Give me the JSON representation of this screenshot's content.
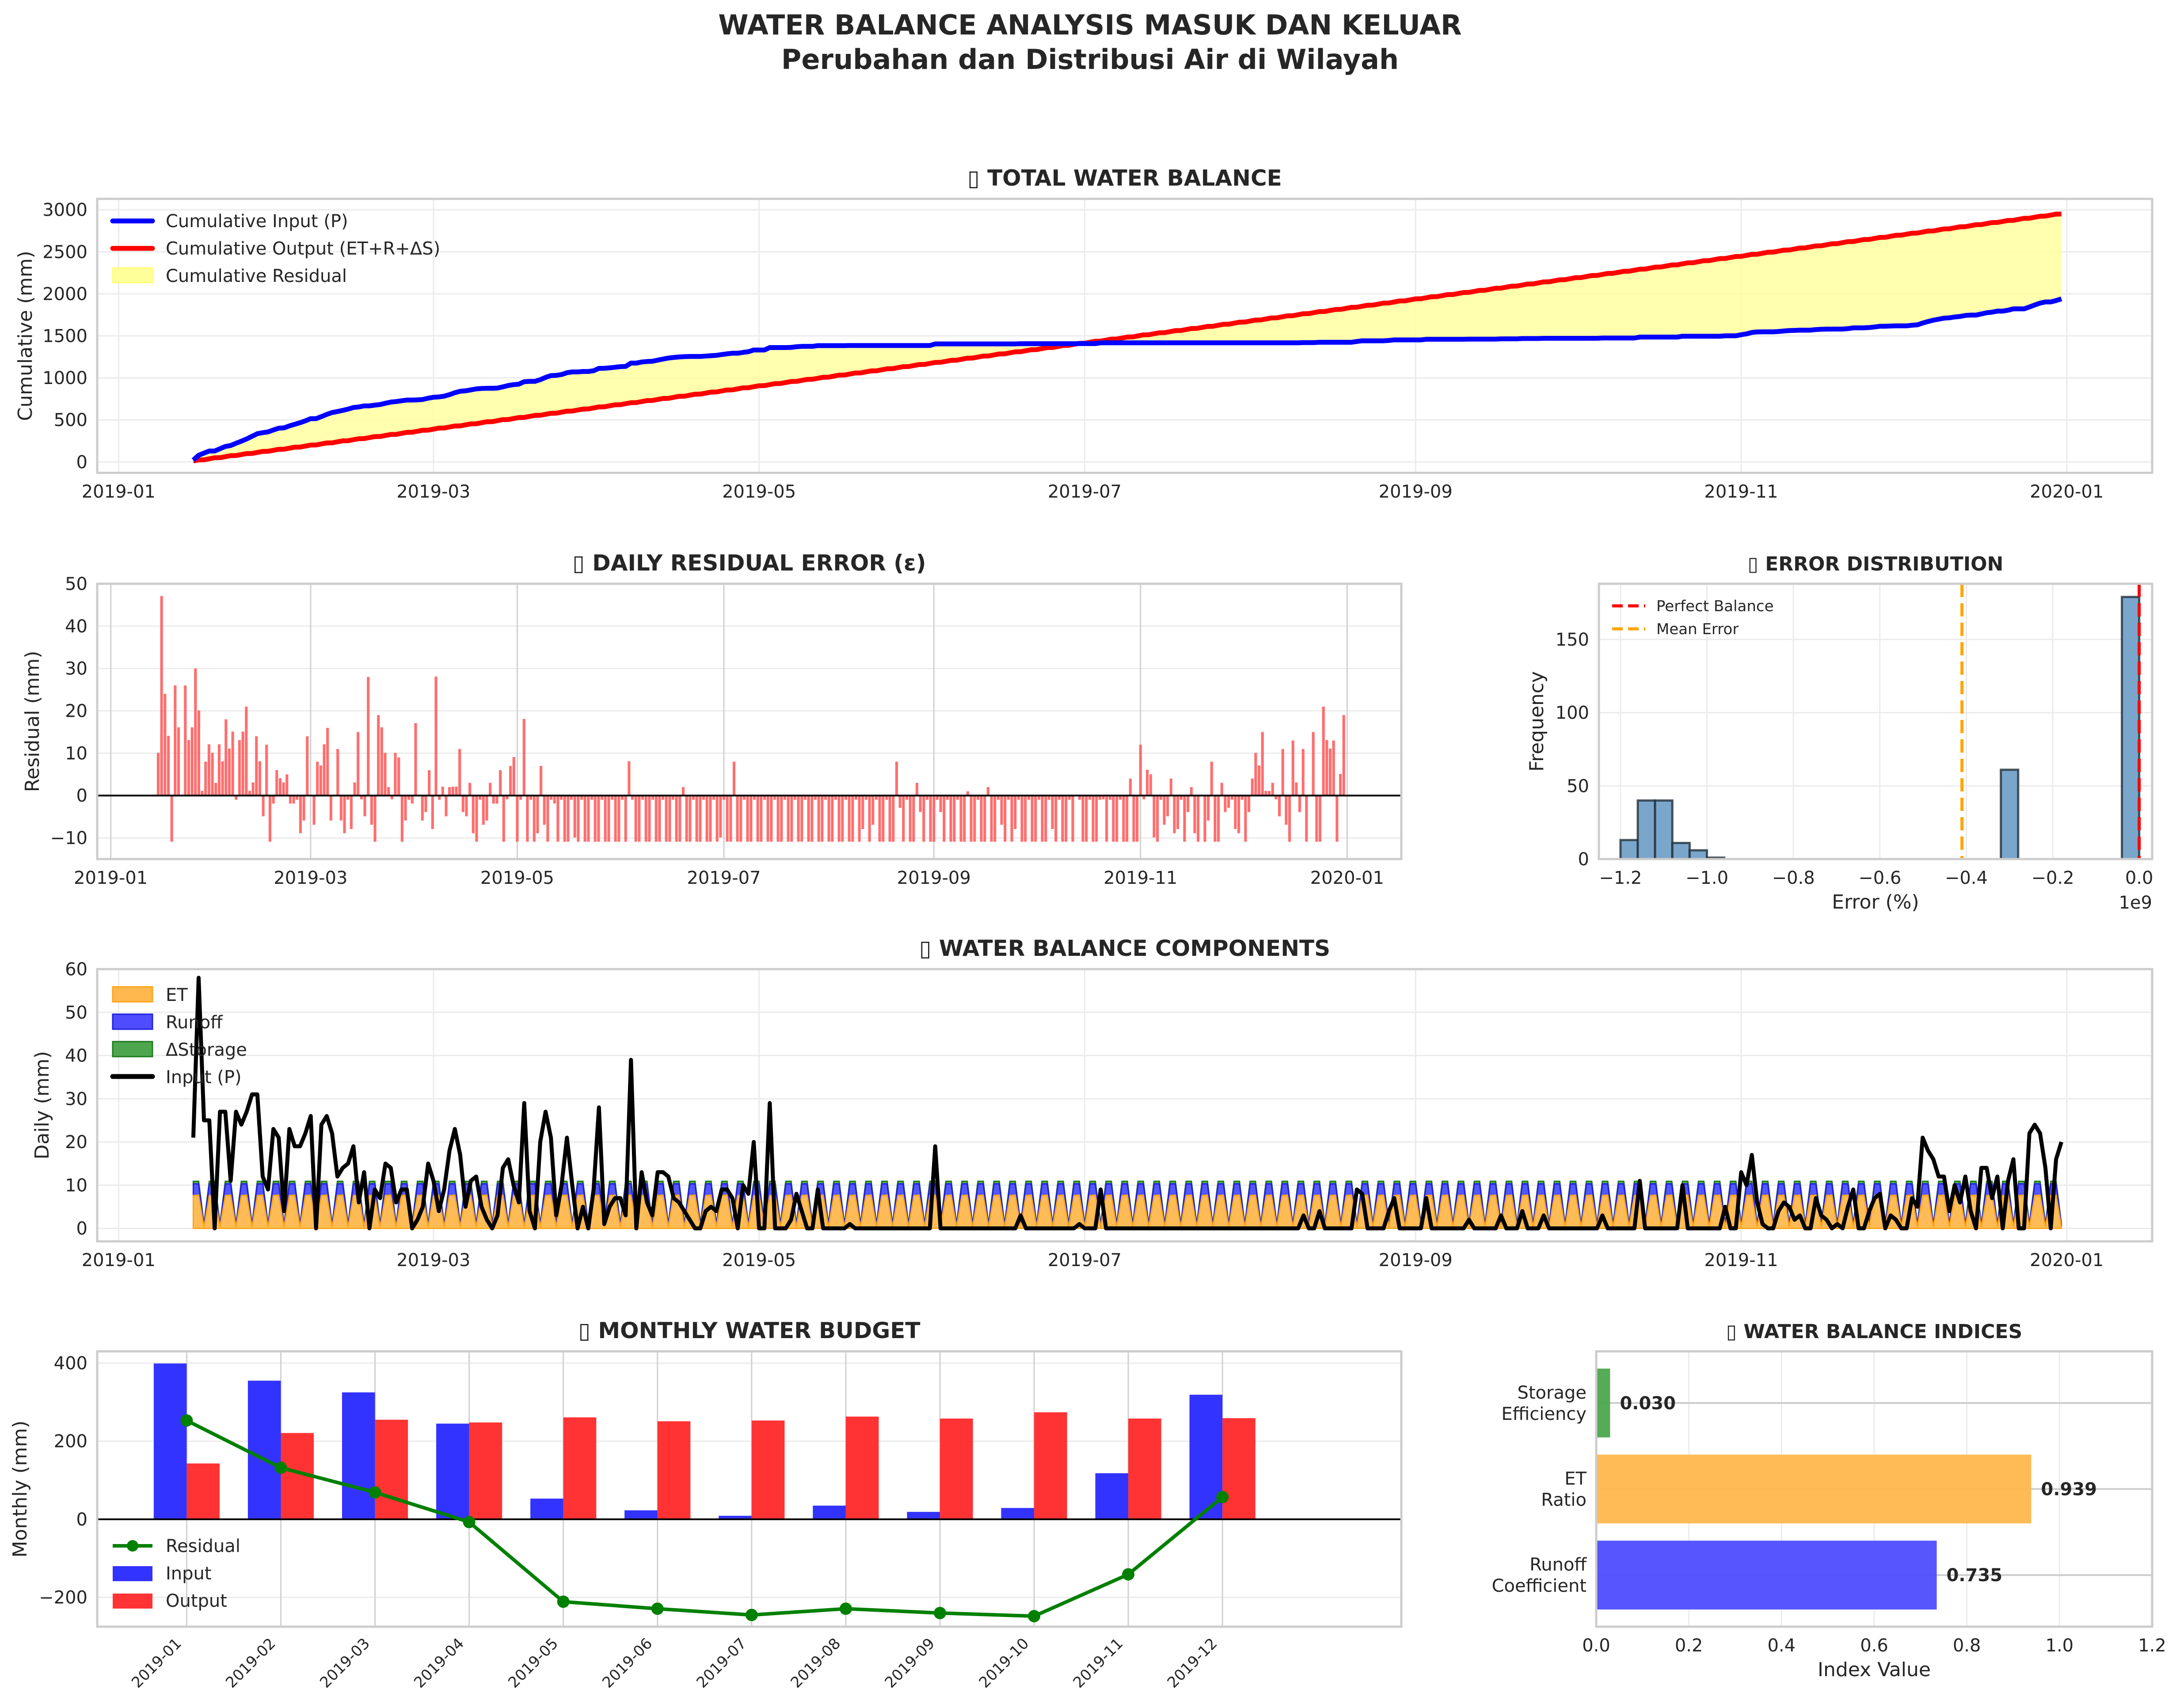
{
  "figure": {
    "title_line1": "WATER BALANCE ANALYSIS MASUK DAN KELUAR",
    "title_line2": "Perubahan dan Distribusi Air di Wilayah",
    "missing_glyph": "▯"
  },
  "colors": {
    "input": "#0000ff",
    "output": "#ff0000",
    "residual_fill": "#ffff99",
    "residual_bar": "#ff6666",
    "et": "#ffb84d",
    "runoff": "#4d4dff",
    "storage": "#4da64d",
    "hist": "#7aa6cc",
    "mean": "#ffa500",
    "monthly_residual": "#008000",
    "monthly_input": "#3333ff",
    "monthly_output": "#ff3333"
  },
  "chart_data": [
    {
      "id": "total",
      "type": "line",
      "title": "TOTAL WATER BALANCE",
      "ylabel": "Cumulative (mm)",
      "xlabel": "",
      "ylim": [
        -130,
        3130
      ],
      "yticks": [
        0,
        500,
        1000,
        1500,
        2000,
        2500,
        3000
      ],
      "xticks": [
        "2019-01",
        "2019-03",
        "2019-05",
        "2019-07",
        "2019-09",
        "2019-11",
        "2020-01"
      ],
      "grid": true,
      "legend_position": "top-left",
      "legend": [
        "Cumulative Input (P)",
        "Cumulative Output (ET+R+ΔS)",
        "Cumulative Residual"
      ],
      "final_values": {
        "cumulative_input": 1940,
        "cumulative_output": 2950
      },
      "series_note": "cumulative sums of daily.P and daily output"
    },
    {
      "id": "residual",
      "type": "bar",
      "title": "DAILY RESIDUAL ERROR (ε)",
      "ylabel": "Residual (mm)",
      "ylim": [
        -15,
        50
      ],
      "yticks": [
        -10,
        0,
        10,
        20,
        30,
        40,
        50
      ],
      "xticks": [
        "2019-01",
        "2019-03",
        "2019-05",
        "2019-07",
        "2019-09",
        "2019-11",
        "2020-01"
      ],
      "grid": true,
      "series_note": "daily.P minus daily output"
    },
    {
      "id": "hist",
      "type": "bar",
      "title": "ERROR DISTRIBUTION",
      "xlabel": "Error (%)",
      "ylabel": "Frequency",
      "x_scale_label": "1e9",
      "xlim": [
        -1.25,
        0.03
      ],
      "ylim": [
        0,
        188
      ],
      "xticks": [
        -1.2,
        -1.0,
        -0.8,
        -0.6,
        -0.4,
        -0.2,
        0.0
      ],
      "xtick_labels": [
        "−1.2",
        "−1.0",
        "−0.8",
        "−0.6",
        "−0.4",
        "−0.2",
        "0.0"
      ],
      "yticks": [
        0,
        50,
        100,
        150
      ],
      "bins": [
        {
          "from": -1.2,
          "to": -1.16,
          "count": 13
        },
        {
          "from": -1.16,
          "to": -1.12,
          "count": 40
        },
        {
          "from": -1.12,
          "to": -1.08,
          "count": 40
        },
        {
          "from": -1.08,
          "to": -1.04,
          "count": 11
        },
        {
          "from": -1.04,
          "to": -1.0,
          "count": 6
        },
        {
          "from": -1.0,
          "to": -0.96,
          "count": 1
        },
        {
          "from": -0.32,
          "to": -0.28,
          "count": 61
        },
        {
          "from": -0.04,
          "to": 0.0,
          "count": 179
        }
      ],
      "perfect_balance": 0.0,
      "mean_error": -0.41,
      "legend_position": "top-left",
      "legend": [
        "Perfect Balance",
        "Mean Error"
      ]
    },
    {
      "id": "components",
      "type": "area",
      "title": "WATER BALANCE COMPONENTS",
      "ylabel": "Daily (mm)",
      "ylim": [
        -3,
        60
      ],
      "yticks": [
        0,
        10,
        20,
        30,
        40,
        50,
        60
      ],
      "xticks": [
        "2019-01",
        "2019-03",
        "2019-05",
        "2019-07",
        "2019-09",
        "2019-11",
        "2020-01"
      ],
      "grid": true,
      "legend_position": "top-left",
      "legend": [
        "ET",
        "Runoff",
        "ΔStorage",
        "Input (P)"
      ],
      "component_cycle": {
        "et": [
          7.6,
          7.7,
          0.3
        ],
        "runoff": [
          2.7,
          2.6,
          0.4
        ],
        "storage": [
          0.6,
          0.6,
          0.3
        ]
      }
    },
    {
      "id": "monthly",
      "type": "bar",
      "title": "MONTHLY WATER BUDGET",
      "ylabel": "Monthly (mm)",
      "ylim": [
        -275,
        430
      ],
      "yticks": [
        -200,
        0,
        200,
        400
      ],
      "categories": [
        "2019-01",
        "2019-02",
        "2019-03",
        "2019-04",
        "2019-05",
        "2019-06",
        "2019-07",
        "2019-08",
        "2019-09",
        "2019-10",
        "2019-11",
        "2019-12"
      ],
      "series": [
        {
          "name": "Input",
          "values": [
            399,
            355,
            325,
            245,
            53,
            23,
            9,
            35,
            19,
            29,
            118,
            319
          ]
        },
        {
          "name": "Output",
          "values": [
            143,
            221,
            255,
            248,
            261,
            251,
            253,
            263,
            258,
            274,
            258,
            259
          ]
        },
        {
          "name": "Residual",
          "values": [
            253,
            132,
            69,
            -7,
            -211,
            -229,
            -245,
            -229,
            -240,
            -248,
            -141,
            57
          ]
        }
      ],
      "legend_position": "lower-left",
      "legend": [
        "Residual",
        "Input",
        "Output"
      ]
    },
    {
      "id": "indices",
      "type": "bar",
      "orientation": "horizontal",
      "title": "WATER BALANCE INDICES",
      "xlabel": "Index Value",
      "xlim": [
        0,
        1.2
      ],
      "xticks": [
        0.0,
        0.2,
        0.4,
        0.6,
        0.8,
        1.0,
        1.2
      ],
      "categories": [
        "Runoff\nCoefficient",
        "ET\nRatio",
        "Storage\nEfficiency"
      ],
      "values": [
        0.735,
        0.939,
        0.03
      ],
      "value_labels": [
        "0.735",
        "0.939",
        "0.030"
      ]
    }
  ],
  "daily": {
    "start": "2019-01-15",
    "P": [
      21,
      58,
      25,
      25,
      0,
      27,
      27,
      11,
      27,
      24,
      27,
      31,
      31,
      12,
      9,
      23,
      21,
      4,
      23,
      19,
      19,
      22,
      26,
      0,
      24,
      26,
      22,
      12,
      14,
      15,
      19,
      6,
      13,
      0,
      9,
      7,
      15,
      14,
      6,
      9,
      9,
      0,
      2,
      5,
      15,
      11,
      4,
      9,
      18,
      23,
      17,
      5,
      11,
      12,
      5,
      2,
      0,
      3,
      14,
      16,
      10,
      6,
      29,
      4,
      0,
      20,
      27,
      21,
      3,
      10,
      21,
      10,
      0,
      5,
      0,
      9,
      28,
      1,
      5,
      7,
      7,
      3,
      39,
      0,
      13,
      6,
      3,
      13,
      13,
      12,
      7,
      6,
      4,
      2,
      0,
      0,
      4,
      5,
      4,
      9,
      9,
      7,
      0,
      10,
      8,
      20,
      0,
      0,
      29,
      0,
      0,
      0,
      2,
      8,
      4,
      0,
      0,
      9,
      0,
      0,
      0,
      0,
      0,
      1,
      0,
      0,
      0,
      0,
      0,
      0,
      0,
      0,
      0,
      0,
      0,
      0,
      0,
      0,
      0,
      19,
      0,
      0,
      0,
      0,
      0,
      0,
      0,
      0,
      0,
      0,
      0,
      0,
      0,
      0,
      0,
      3,
      0,
      0,
      0,
      0,
      0,
      0,
      0,
      0,
      0,
      0,
      1,
      0,
      0,
      0,
      9,
      0,
      0,
      0,
      0,
      0,
      0,
      0,
      0,
      0,
      0,
      0,
      0,
      0,
      0,
      0,
      0,
      0,
      0,
      0,
      0,
      0,
      0,
      0,
      0,
      0,
      0,
      0,
      0,
      0,
      0,
      0,
      0,
      0,
      0,
      0,
      0,
      0,
      3,
      0,
      0,
      4,
      0,
      0,
      0,
      0,
      0,
      0,
      9,
      8,
      0,
      0,
      0,
      0,
      4,
      7,
      0,
      0,
      0,
      0,
      0,
      7,
      0,
      0,
      0,
      0,
      0,
      0,
      0,
      2,
      0,
      0,
      0,
      0,
      0,
      3,
      0,
      0,
      0,
      4,
      0,
      0,
      0,
      3,
      0,
      0,
      0,
      0,
      0,
      0,
      0,
      0,
      0,
      0,
      3,
      0,
      0,
      0,
      0,
      0,
      0,
      11,
      0,
      0,
      0,
      0,
      0,
      0,
      0,
      10,
      0,
      0,
      0,
      0,
      0,
      0,
      0,
      5,
      0,
      0,
      13,
      10,
      17,
      6,
      1,
      0,
      0,
      4,
      6,
      5,
      2,
      3,
      0,
      0,
      7,
      3,
      2,
      0,
      1,
      0,
      5,
      9,
      0,
      0,
      4,
      7,
      8,
      0,
      3,
      2,
      0,
      0,
      7,
      5,
      21,
      18,
      16,
      12,
      12,
      4,
      10,
      6,
      12,
      4,
      0,
      14,
      14,
      7,
      12,
      0,
      11,
      16,
      0,
      0,
      22,
      24,
      22,
      14,
      0,
      16,
      20
    ]
  }
}
